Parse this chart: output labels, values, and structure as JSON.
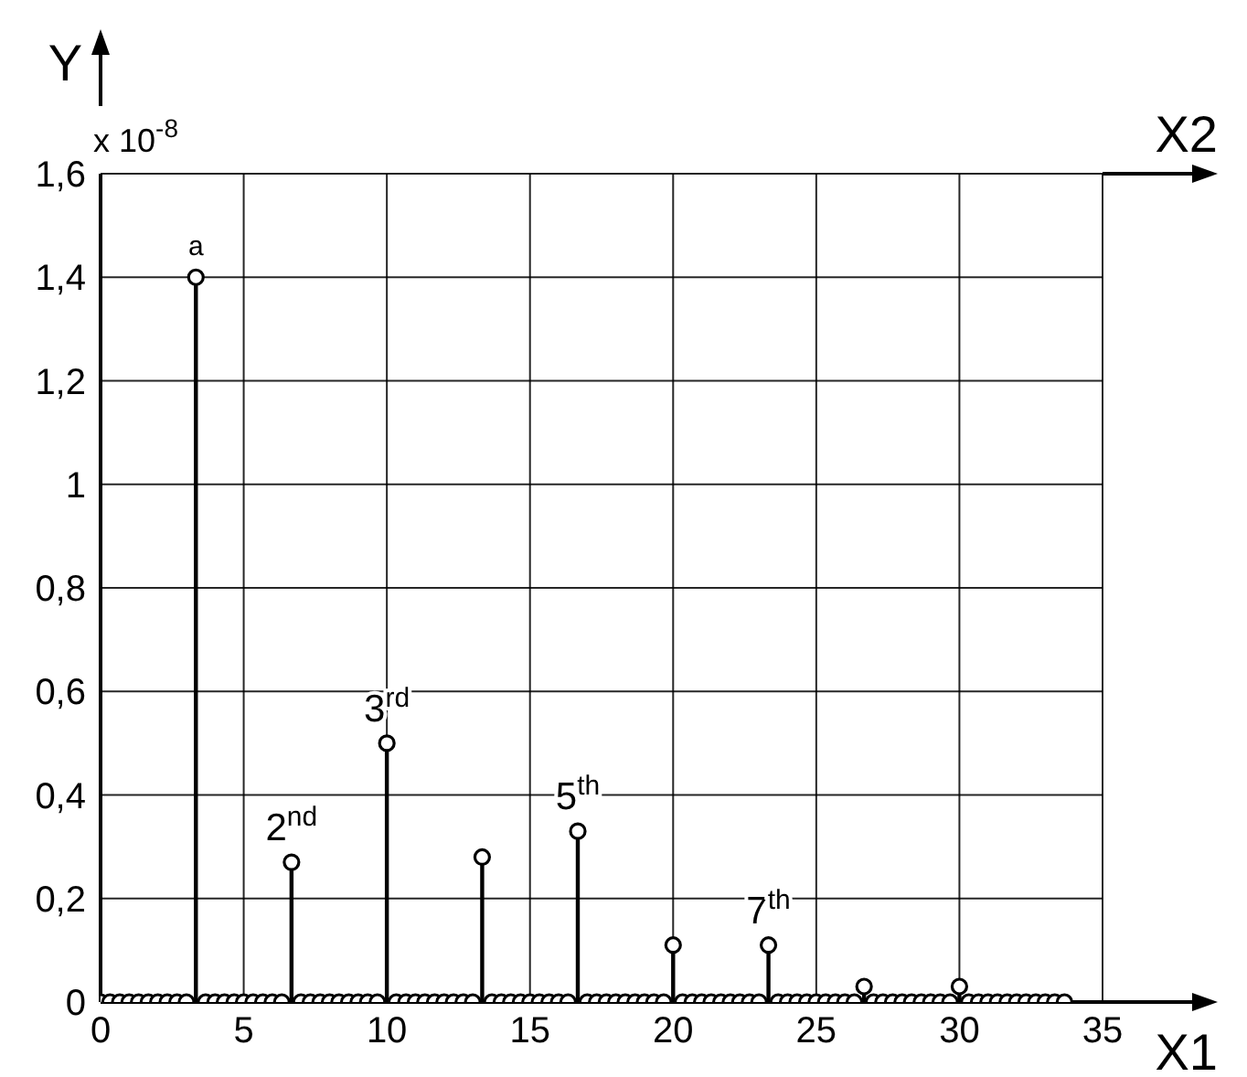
{
  "chart_data": {
    "type": "lollipop",
    "xlabel": "X1",
    "ylabel": "Y",
    "x2label": "X2",
    "x": [
      0,
      0.33,
      0.67,
      1,
      1.33,
      1.67,
      2,
      2.33,
      2.67,
      3,
      3.33,
      3.67,
      4,
      4.33,
      4.67,
      5,
      5.33,
      5.67,
      6,
      6.33,
      6.67,
      7,
      7.33,
      7.67,
      8,
      8.33,
      8.67,
      9,
      9.33,
      9.67,
      10,
      10.33,
      10.67,
      11,
      11.33,
      11.67,
      12,
      12.33,
      12.67,
      13,
      13.33,
      13.67,
      14,
      14.33,
      14.67,
      15,
      15.33,
      15.67,
      16,
      16.33,
      16.67,
      17,
      17.33,
      17.67,
      18,
      18.33,
      18.67,
      19,
      19.33,
      19.67,
      20,
      20.33,
      20.67,
      21,
      21.33,
      21.67,
      22,
      22.33,
      22.67,
      23,
      23.33,
      23.67,
      24,
      24.33,
      24.67,
      25,
      25.33,
      25.67,
      26,
      26.33,
      26.67,
      27,
      27.33,
      27.67,
      28,
      28.33,
      28.67,
      29,
      29.33,
      29.67,
      30,
      30.33,
      30.67,
      31,
      31.33,
      31.67,
      32,
      32.33,
      32.67,
      33,
      33.33,
      33.67
    ],
    "values": [
      0,
      0,
      0,
      0,
      0,
      0,
      0,
      0,
      0,
      0,
      1.4,
      0,
      0,
      0,
      0,
      0,
      0,
      0,
      0,
      0,
      0.27,
      0,
      0,
      0,
      0,
      0,
      0,
      0,
      0,
      0,
      0.5,
      0,
      0,
      0,
      0,
      0,
      0,
      0,
      0,
      0,
      0.28,
      0,
      0,
      0,
      0,
      0,
      0,
      0,
      0,
      0,
      0.33,
      0,
      0,
      0,
      0,
      0,
      0,
      0,
      0,
      0,
      0.11,
      0,
      0,
      0,
      0,
      0,
      0,
      0,
      0,
      0,
      0.11,
      0,
      0,
      0,
      0,
      0,
      0,
      0,
      0,
      0,
      0.03,
      0,
      0,
      0,
      0,
      0,
      0,
      0,
      0,
      0,
      0.03,
      0,
      0,
      0,
      0,
      0,
      0,
      0,
      0,
      0,
      0,
      0
    ],
    "color": "#000000",
    "marker": "circle",
    "xlim": [
      0,
      35
    ],
    "xticks": [
      0,
      5,
      10,
      15,
      20,
      25,
      30,
      35
    ],
    "ylim": [
      0,
      1.6
    ],
    "yticks": [
      0,
      {
        "value": 0.2,
        "label": "0,2"
      },
      {
        "value": 0.4,
        "label": "0,4"
      },
      {
        "value": 0.6,
        "label": "0,6"
      },
      {
        "value": 0.8,
        "label": "0,8"
      },
      1,
      {
        "value": 1.2,
        "label": "1,2"
      },
      {
        "value": 1.4,
        "label": "1,4"
      },
      {
        "value": 1.6,
        "label": "1,6"
      }
    ],
    "grid": true,
    "annotations": [
      "x 10$^{-8}$",
      {
        "text": "a",
        "x": 3.33,
        "y": 1.4
      },
      {
        "text": "2$^{nd}$",
        "x": 6.67,
        "y": 0.27
      },
      {
        "text": "3$^{rd}$",
        "x": 10,
        "y": 0.5
      },
      {
        "text": "5$^{th}$",
        "x": 16.67,
        "y": 0.33
      },
      {
        "text": "7$^{th}$",
        "x": 23.33,
        "y": 0.11
      }
    ]
  }
}
